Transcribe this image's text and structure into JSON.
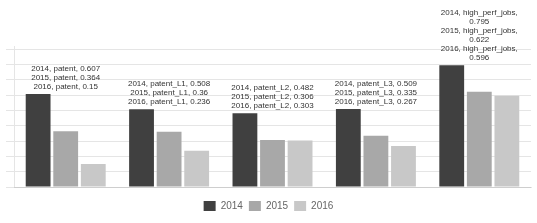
{
  "chart_data": {
    "type": "bar",
    "categories": [
      "patent",
      "patent_L1",
      "patent_L2",
      "patent_L3",
      "high_perf_jobs"
    ],
    "series": [
      {
        "name": "2014",
        "color": "#404040",
        "values": [
          0.607,
          0.508,
          0.482,
          0.509,
          0.795
        ],
        "value_labels": [
          "2014, patent, 0.607",
          "2014, patent_L1, 0.508",
          "2014, patent_L2, 0.482",
          "2014, patent_L3, 0.509",
          "2014, high_perf_jobs,\n0.795"
        ]
      },
      {
        "name": "2015",
        "color": "#a8a8a8",
        "values": [
          0.364,
          0.36,
          0.306,
          0.335,
          0.622
        ],
        "value_labels": [
          "2015, patent, 0.364",
          "2015, patent_L1, 0.36",
          "2015, patent_L2, 0.306",
          "2015, patent_L3, 0.335",
          "2015, high_perf_jobs,\n0.622"
        ]
      },
      {
        "name": "2016",
        "color": "#c8c8c8",
        "values": [
          0.15,
          0.236,
          0.303,
          0.267,
          0.596
        ],
        "value_labels": [
          "2016, patent, 0.15",
          "2016, patent_L1, 0.236",
          "2016, patent_L2, 0.303",
          "2016, patent_L3, 0.267",
          "2016, high_perf_jobs,\n0.596"
        ]
      }
    ],
    "ylim": [
      0,
      0.92
    ],
    "yticks": [
      0.0,
      0.1,
      0.2,
      0.3,
      0.4,
      0.5,
      0.6,
      0.7,
      0.8,
      0.9
    ],
    "grid": true,
    "tick_labels": false,
    "data_labels": true,
    "legend": "bottom"
  }
}
